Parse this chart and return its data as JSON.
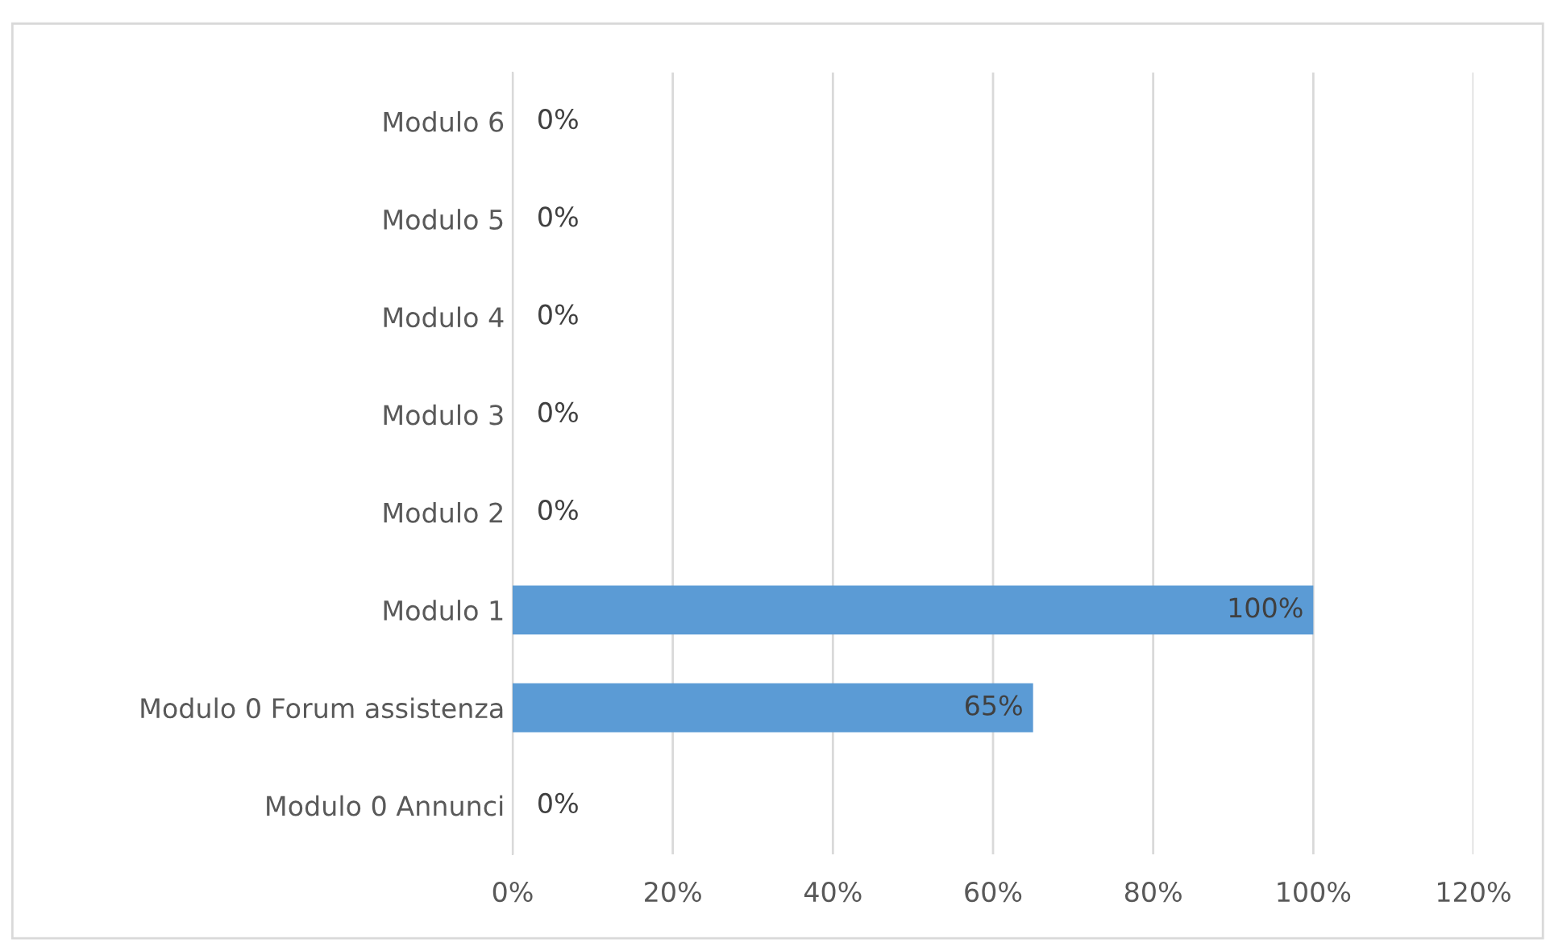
{
  "chart_data": {
    "type": "bar",
    "orientation": "horizontal",
    "categories": [
      "Modulo 6",
      "Modulo 5",
      "Modulo 4",
      "Modulo 3",
      "Modulo 2",
      "Modulo 1",
      "Modulo 0 Forum assistenza",
      "Modulo 0 Annunci"
    ],
    "values": [
      0,
      0,
      0,
      0,
      0,
      100,
      65,
      0
    ],
    "value_labels": [
      "0%",
      "0%",
      "0%",
      "0%",
      "0%",
      "100%",
      "65%",
      "0%"
    ],
    "color": "#5b9bd5",
    "xlim": [
      0,
      120
    ],
    "xticks": [
      {
        "value": 0,
        "label": "0%"
      },
      {
        "value": 20,
        "label": "20%"
      },
      {
        "value": 40,
        "label": "40%"
      },
      {
        "value": 60,
        "label": "60%"
      },
      {
        "value": 80,
        "label": "80%"
      },
      {
        "value": 100,
        "label": "100%"
      },
      {
        "value": 120,
        "label": "120%"
      }
    ],
    "grid": "x"
  }
}
